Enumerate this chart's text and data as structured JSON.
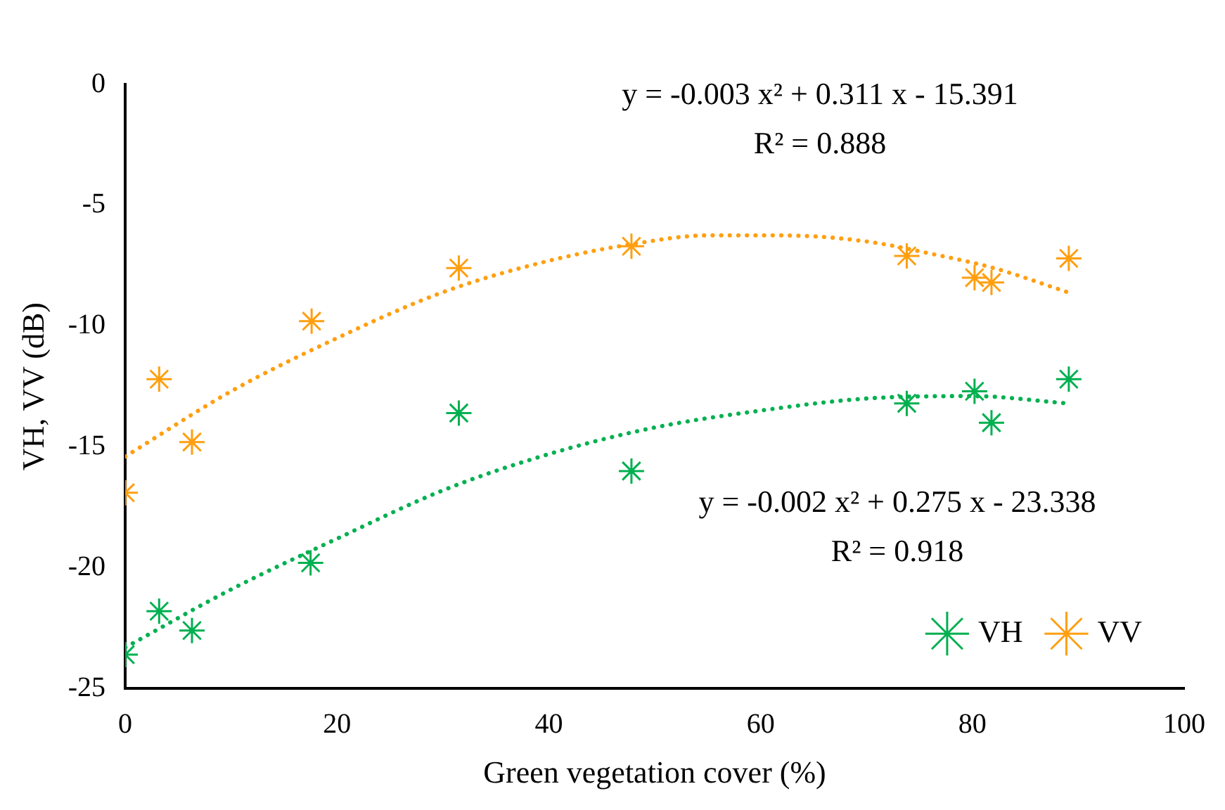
{
  "chart_data": {
    "type": "scatter",
    "xlabel": "Green vegetation cover (%)",
    "ylabel": "VH, VV (dB)",
    "xlim": [
      0,
      100
    ],
    "xticks": [
      0,
      20,
      40,
      60,
      80,
      100
    ],
    "ylim": [
      -25,
      0
    ],
    "yticks": [
      -25,
      -20,
      -15,
      -10,
      -5,
      0
    ],
    "grid": false,
    "legend": "bottom right",
    "marker": "cross",
    "line_style": "dotted",
    "annotations": [
      "y = -0.003 x² + 0.311 x - 15.391",
      "R² = 0.888",
      "y = -0.002 x² + 0.275 x - 23.338",
      "R² = 0.918"
    ],
    "series": [
      {
        "name": "VH",
        "color": "#00b050",
        "x": [
          0,
          3.2,
          6.3,
          17.5,
          31.5,
          47.8,
          73.8,
          80.2,
          81.8,
          89.1
        ],
        "values": [
          -23.6,
          -21.8,
          -22.6,
          -19.8,
          -13.6,
          -16.0,
          -13.2,
          -12.7,
          -14.0,
          -12.2
        ]
      },
      {
        "name": "VV",
        "color": "#ff9f10",
        "x": [
          0,
          3.2,
          6.3,
          17.6,
          31.5,
          47.8,
          73.8,
          80.2,
          81.8,
          89.1
        ],
        "values": [
          -16.9,
          -12.2,
          -14.8,
          -9.8,
          -7.6,
          -6.7,
          -7.1,
          -8.0,
          -8.2,
          -7.2
        ]
      },
      {
        "type": "line",
        "marker": "none",
        "color": "#00b050",
        "x": [
          0,
          10,
          20,
          30,
          40,
          50,
          60,
          70,
          80,
          89
        ],
        "values": [
          -23.3,
          -20.9,
          -18.8,
          -16.8,
          -15.3,
          -14.2,
          -13.5,
          -13.0,
          -12.9,
          -13.2
        ]
      },
      {
        "type": "line",
        "marker": "none",
        "color": "#ff9f10",
        "x": [
          0,
          10,
          20,
          30,
          40,
          48,
          55,
          62,
          70,
          76,
          82,
          89
        ],
        "values": [
          -15.4,
          -12.7,
          -10.5,
          -8.6,
          -7.3,
          -6.6,
          -6.25,
          -6.25,
          -6.5,
          -7.0,
          -7.6,
          -8.6
        ]
      }
    ]
  }
}
